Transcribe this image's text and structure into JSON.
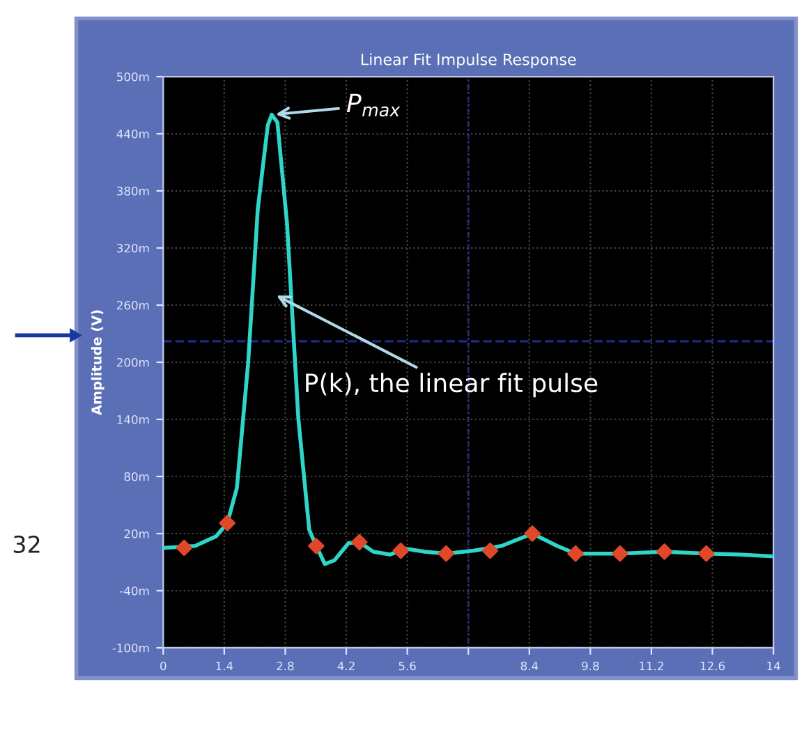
{
  "chart_data": {
    "type": "line",
    "title": "Linear Fit Impulse Response",
    "ylabel": "Amplitude (V)",
    "series": [
      {
        "color": "#2fd6c8",
        "marker": "none",
        "x": [
          0,
          0.73,
          1.21,
          1.47,
          1.69,
          1.95,
          2.17,
          2.4,
          2.49,
          2.62,
          2.84,
          3.1,
          3.35,
          3.51,
          3.71,
          3.93,
          4.25,
          4.5,
          4.82,
          5.2,
          5.57,
          6.0,
          6.49,
          7.12,
          7.76,
          8.47,
          9.04,
          9.46,
          10.48,
          11.5,
          12.46,
          13.2,
          14
        ],
        "values": [
          5,
          7,
          17,
          31,
          68,
          200,
          361,
          449,
          460,
          452,
          346,
          141,
          24,
          7,
          -12,
          -8,
          10,
          11,
          1,
          -2,
          4,
          1,
          -1,
          2,
          7,
          20,
          7,
          -1,
          -1,
          1,
          -1,
          -2,
          -4
        ]
      },
      {
        "type": "scatter",
        "color": "#e0482a",
        "marker": "diamond",
        "x": [
          0.48,
          1.47,
          3.51,
          4.5,
          5.45,
          6.49,
          7.5,
          8.47,
          9.46,
          10.48,
          11.5,
          12.46
        ],
        "values": [
          5,
          31,
          7,
          11,
          2,
          -1,
          2,
          20,
          -1,
          -1,
          1,
          -1
        ]
      }
    ],
    "xlim": [
      0,
      14
    ],
    "xticks": [
      0,
      1.4,
      2.8,
      4.2,
      5.6,
      {
        "value": 7,
        "label": null
      },
      8.4,
      9.8,
      11.2,
      12.6,
      14
    ],
    "ylim": [
      -100,
      500
    ],
    "yticks": [
      {
        "value": -100,
        "label": "-100m"
      },
      {
        "value": -40,
        "label": "-40m"
      },
      {
        "value": 20,
        "label": "20m"
      },
      {
        "value": 80,
        "label": "80m"
      },
      {
        "value": 140,
        "label": "140m"
      },
      {
        "value": 200,
        "label": "200m"
      },
      {
        "value": 260,
        "label": "260m"
      },
      {
        "value": 320,
        "label": "320m"
      },
      {
        "value": 380,
        "label": "380m"
      },
      {
        "value": 440,
        "label": "440m"
      },
      {
        "value": 500,
        "label": "500m"
      }
    ],
    "ref_lines": [
      {
        "axis": "y",
        "value": 222,
        "color": "#1c2a8c",
        "line_style": "dashed"
      },
      {
        "axis": "x",
        "value": 7,
        "color": "#1c2a8c",
        "line_style": "dotted"
      }
    ],
    "annotations": [
      {
        "text": "P$_{max}$",
        "x": 2.49,
        "y": 460
      },
      "P(k), the linear fit pulse",
      "32"
    ],
    "grid": true,
    "legend": false
  }
}
